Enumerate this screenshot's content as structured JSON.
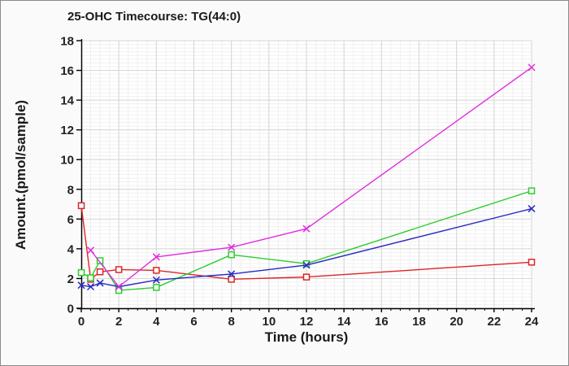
{
  "window": {
    "background": "#fafafa",
    "border_color": "#8a8a8a",
    "plot_background": "#ffffff",
    "grid_major_color": "#d6d6d6",
    "grid_minor_color": "#f0f0f0",
    "axis_color": "#000000",
    "text_color": "#1a1a1a"
  },
  "chart_data": {
    "type": "line",
    "title": "25-OHC Timecourse: TG(44:0)",
    "xlabel": "Time (hours)",
    "ylabel": "Amount.(pmol/sample)",
    "xlim": [
      0,
      24
    ],
    "ylim": [
      0,
      18
    ],
    "x_ticks": [
      0,
      2,
      4,
      6,
      8,
      10,
      12,
      14,
      16,
      18,
      20,
      22,
      24
    ],
    "y_ticks": [
      0,
      2,
      4,
      6,
      8,
      10,
      12,
      14,
      16,
      18
    ],
    "grid": "major and fine minor gridlines, on",
    "legend": "none",
    "series": [
      {
        "name": "red-squares",
        "color": "#dc2626",
        "marker": "square",
        "x": [
          0,
          0.5,
          1,
          2,
          4,
          8,
          12,
          24
        ],
        "y": [
          6.9,
          1.95,
          2.45,
          2.6,
          2.55,
          1.95,
          2.1,
          3.1
        ]
      },
      {
        "name": "green-squares",
        "color": "#2ecc2e",
        "marker": "square",
        "x": [
          0,
          0.5,
          1,
          2,
          4,
          8,
          12,
          24
        ],
        "y": [
          2.4,
          2.05,
          3.2,
          1.2,
          1.4,
          3.6,
          3.0,
          7.9
        ]
      },
      {
        "name": "blue-x",
        "color": "#2929c4",
        "marker": "x",
        "x": [
          0,
          0.5,
          1,
          2,
          4,
          8,
          12,
          24
        ],
        "y": [
          1.55,
          1.45,
          1.7,
          1.45,
          1.9,
          2.3,
          2.9,
          6.7
        ]
      },
      {
        "name": "magenta-x",
        "color": "#e02ee0",
        "marker": "x",
        "x": [
          0.5,
          2,
          4,
          8,
          12,
          24
        ],
        "y": [
          3.9,
          1.45,
          3.45,
          4.1,
          5.35,
          16.2
        ]
      }
    ]
  }
}
